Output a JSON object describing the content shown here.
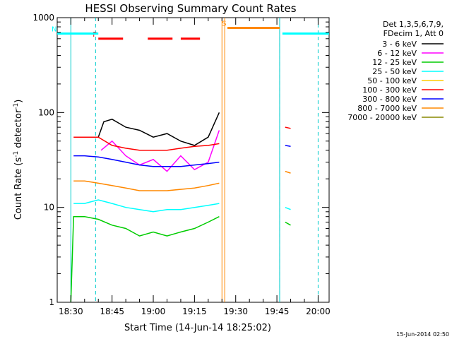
{
  "chart_data": {
    "type": "line",
    "title": "HESSI Observing Summary Count Rates",
    "xlabel": "Start Time (14-Jun-14 18:25:02)",
    "ylabel_parts": [
      "Count Rate (s",
      "-1",
      " detector",
      "-1",
      ")"
    ],
    "yscale": "log",
    "ylim": [
      1,
      1000
    ],
    "xlim": [
      "18:25:02",
      "20:04:00"
    ],
    "y_ticks": [
      {
        "value": 1,
        "label": "1"
      },
      {
        "value": 10,
        "label": "10"
      },
      {
        "value": 100,
        "label": "100"
      },
      {
        "value": 1000,
        "label": "1000"
      }
    ],
    "x_ticks": [
      {
        "time": "18:30",
        "label": "18:30"
      },
      {
        "time": "18:45",
        "label": "18:45"
      },
      {
        "time": "19:00",
        "label": "19:00"
      },
      {
        "time": "19:15",
        "label": "19:15"
      },
      {
        "time": "19:30",
        "label": "19:30"
      },
      {
        "time": "19:45",
        "label": "19:45"
      },
      {
        "time": "20:00",
        "label": "20:00"
      }
    ],
    "legend_header": [
      "Det 1,3,5,6,7,9,",
      "FDecim 1, Att 0"
    ],
    "legend": [
      {
        "label": "3 - 6 keV",
        "color": "#000000"
      },
      {
        "label": "6 - 12 keV",
        "color": "#ff00ff"
      },
      {
        "label": "12 - 25 keV",
        "color": "#00cc00"
      },
      {
        "label": "25 - 50 keV",
        "color": "#00ffff"
      },
      {
        "label": "50 - 100 keV",
        "color": "#ffcc00"
      },
      {
        "label": "100 - 300 keV",
        "color": "#ff0000"
      },
      {
        "label": "300 - 800 keV",
        "color": "#0000ff"
      },
      {
        "label": "800 - 7000 keV",
        "color": "#ff8800"
      },
      {
        "label": "7000 - 20000 keV",
        "color": "#888800"
      }
    ],
    "series": [
      {
        "name": "3 - 6 keV",
        "color": "#000000",
        "segments": [
          {
            "x": [
              "18:40",
              "18:42",
              "18:45",
              "18:50",
              "18:55",
              "19:00",
              "19:05",
              "19:10",
              "19:15",
              "19:20",
              "19:24"
            ],
            "y": [
              55,
              80,
              85,
              70,
              65,
              55,
              60,
              50,
              45,
              55,
              100
            ]
          }
        ]
      },
      {
        "name": "6 - 12 keV",
        "color": "#ff00ff",
        "segments": [
          {
            "x": [
              "18:41",
              "18:45",
              "18:50",
              "18:55",
              "19:00",
              "19:05",
              "19:10",
              "19:15",
              "19:20",
              "19:24"
            ],
            "y": [
              40,
              50,
              35,
              28,
              32,
              24,
              35,
              25,
              30,
              65
            ]
          }
        ]
      },
      {
        "name": "12 - 25 keV",
        "color": "#00cc00",
        "segments": [
          {
            "x": [
              "18:30",
              "18:31",
              "18:35",
              "18:40",
              "18:45",
              "18:50",
              "18:55",
              "19:00",
              "19:05",
              "19:10",
              "19:15",
              "19:20",
              "19:24"
            ],
            "y": [
              1,
              8,
              8,
              7.5,
              6.5,
              6,
              5,
              5.5,
              5,
              5.5,
              6,
              7,
              8
            ]
          },
          {
            "x": [
              "19:48",
              "19:50"
            ],
            "y": [
              7,
              6.5
            ]
          }
        ]
      },
      {
        "name": "25 - 50 keV",
        "color": "#00ffff",
        "segments": [
          {
            "x": [
              "18:31",
              "18:35",
              "18:40",
              "18:45",
              "18:50",
              "18:55",
              "19:00",
              "19:05",
              "19:10",
              "19:15",
              "19:20",
              "19:24"
            ],
            "y": [
              11,
              11,
              12,
              11,
              10,
              9.5,
              9,
              9.5,
              9.5,
              10,
              10.5,
              11
            ]
          },
          {
            "x": [
              "19:48",
              "19:50"
            ],
            "y": [
              10,
              9.5
            ]
          }
        ]
      },
      {
        "name": "100 - 300 keV",
        "color": "#ff0000",
        "segments": [
          {
            "x": [
              "18:31",
              "18:35",
              "18:40",
              "18:45",
              "18:50",
              "18:55",
              "19:00",
              "19:05",
              "19:10",
              "19:15",
              "19:20",
              "19:24"
            ],
            "y": [
              55,
              55,
              55,
              45,
              42,
              40,
              40,
              40,
              42,
              44,
              45,
              47
            ]
          },
          {
            "x": [
              "19:48",
              "19:50"
            ],
            "y": [
              70,
              68
            ]
          }
        ]
      },
      {
        "name": "300 - 800 keV",
        "color": "#0000ff",
        "segments": [
          {
            "x": [
              "18:31",
              "18:35",
              "18:40",
              "18:45",
              "18:50",
              "18:55",
              "19:00",
              "19:05",
              "19:10",
              "19:15",
              "19:20",
              "19:24"
            ],
            "y": [
              35,
              35,
              34,
              32,
              30,
              28,
              27,
              27,
              27,
              28,
              29,
              30
            ]
          },
          {
            "x": [
              "19:48",
              "19:50"
            ],
            "y": [
              45,
              44
            ]
          }
        ]
      },
      {
        "name": "800 - 7000 keV",
        "color": "#ff8800",
        "segments": [
          {
            "x": [
              "18:31",
              "18:35",
              "18:40",
              "18:45",
              "18:50",
              "18:55",
              "19:00",
              "19:05",
              "19:10",
              "19:15",
              "19:20",
              "19:24"
            ],
            "y": [
              19,
              19,
              18,
              17,
              16,
              15,
              15,
              15,
              15.5,
              16,
              17,
              18
            ]
          },
          {
            "x": [
              "19:48",
              "19:50"
            ],
            "y": [
              24,
              23
            ]
          }
        ]
      }
    ],
    "flag_lines": [
      {
        "label": "F",
        "color": "#ff0000",
        "y": 600,
        "segments": [
          [
            "18:40",
            "18:49"
          ],
          [
            "18:58",
            "19:07"
          ],
          [
            "19:10",
            "19:17"
          ]
        ]
      },
      {
        "label": "S",
        "color": "#ff8800",
        "y": 780,
        "segments": [
          [
            "19:27",
            "19:46"
          ]
        ]
      },
      {
        "label": "N",
        "color": "#00ffff",
        "y": 680,
        "segments": [
          [
            "18:25:02",
            "18:40"
          ],
          [
            "19:47",
            "20:04"
          ]
        ]
      }
    ],
    "vertical_markers": [
      {
        "time": "18:39",
        "style": "dashed",
        "color": "#00cccc"
      },
      {
        "time": "19:46",
        "style": "dashed",
        "color": "#00cccc"
      },
      {
        "time": "20:00",
        "style": "dashed",
        "color": "#00cccc"
      },
      {
        "time": "18:30",
        "style": "solid",
        "color": "#00cccc"
      },
      {
        "time": "19:25",
        "style": "solid",
        "color": "#ff8800"
      },
      {
        "time": "19:26",
        "style": "solid",
        "color": "#ff8800"
      },
      {
        "time": "19:46",
        "style": "solid",
        "color": "#00cccc"
      }
    ],
    "footer_timestamp": "15-Jun-2014 02:50"
  }
}
